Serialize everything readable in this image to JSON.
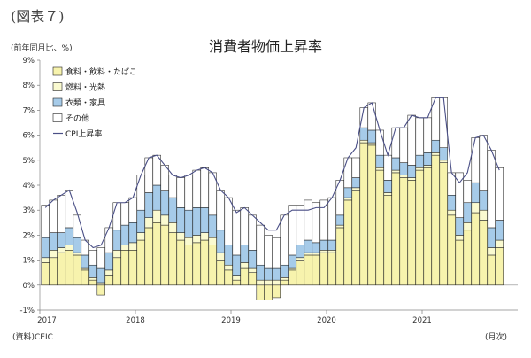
{
  "figure_label": "(図表７)",
  "unit_label": "(前年同月比、%)",
  "source_label": "(資料)CEIC",
  "month_label": "(月次)",
  "colors": {
    "food": "#f7f3ad",
    "fuel": "#fafad0",
    "clothing": "#a6cbe9",
    "other": "#ffffff",
    "cpi": "#4a4f86"
  },
  "chart_data": {
    "type": "bar",
    "title": "消費者物価上昇率",
    "ylim": [
      -1,
      9
    ],
    "yticks": [
      "-1%",
      "0%",
      "1%",
      "2%",
      "3%",
      "4%",
      "5%",
      "6%",
      "7%",
      "8%",
      "9%"
    ],
    "year_labels": [
      "2017",
      "2018",
      "2019",
      "2020",
      "2021"
    ],
    "stacked": true,
    "months": 58,
    "series": [
      {
        "name": "食料・飲料・たばこ",
        "key": "food",
        "values": [
          0.9,
          1.1,
          1.3,
          1.4,
          1.2,
          0.6,
          0.2,
          -0.4,
          0.4,
          1.1,
          1.4,
          1.4,
          1.8,
          2.3,
          2.5,
          2.4,
          2.1,
          1.8,
          1.6,
          1.7,
          1.8,
          1.6,
          1.0,
          0.6,
          0.2,
          0.7,
          0.5,
          -0.6,
          -0.6,
          -0.5,
          0.2,
          0.6,
          1.0,
          1.2,
          1.2,
          1.3,
          1.3,
          2.3,
          3.4,
          3.8,
          5.7,
          5.6,
          4.6,
          3.6,
          4.5,
          4.3,
          4.2,
          4.6,
          4.7,
          5.2,
          4.9,
          2.8,
          1.8,
          2.2,
          2.9,
          2.6,
          1.2,
          1.5
        ]
      },
      {
        "name": "燃料・光熱",
        "key": "fuel",
        "values": [
          0.2,
          0.3,
          0.2,
          0.2,
          0.1,
          0.1,
          0.1,
          0.1,
          0.2,
          0.3,
          0.2,
          0.3,
          0.3,
          0.4,
          0.5,
          0.4,
          0.4,
          0.3,
          0.3,
          0.3,
          0.3,
          0.3,
          0.3,
          0.2,
          0.2,
          0.2,
          0.2,
          0.2,
          0.2,
          0.2,
          0.1,
          0.1,
          0.1,
          0.1,
          0.1,
          0.1,
          0.1,
          0.1,
          0.1,
          0.1,
          0.1,
          0.1,
          0.1,
          0.1,
          0.1,
          0.1,
          0.1,
          0.1,
          0.1,
          0.1,
          0.1,
          0.2,
          0.2,
          0.3,
          0.4,
          0.4,
          0.3,
          0.3
        ]
      },
      {
        "name": "衣類・家具",
        "key": "clothing",
        "values": [
          0.8,
          0.7,
          0.6,
          0.7,
          0.6,
          0.5,
          0.5,
          0.6,
          0.7,
          0.8,
          0.8,
          0.8,
          0.9,
          1.0,
          1.0,
          1.0,
          1.0,
          1.0,
          1.1,
          1.1,
          1.0,
          0.9,
          0.9,
          0.8,
          0.8,
          0.7,
          0.7,
          0.6,
          0.5,
          0.5,
          0.5,
          0.5,
          0.5,
          0.5,
          0.4,
          0.4,
          0.4,
          0.4,
          0.4,
          0.4,
          0.5,
          0.5,
          0.5,
          0.5,
          0.5,
          0.5,
          0.5,
          0.5,
          0.5,
          0.5,
          0.5,
          0.6,
          0.7,
          0.8,
          0.8,
          0.8,
          0.8,
          0.8
        ]
      },
      {
        "name": "その他",
        "key": "other",
        "values": [
          1.3,
          1.3,
          1.5,
          1.5,
          0.9,
          0.6,
          0.6,
          0.8,
          1.0,
          1.1,
          0.9,
          1.0,
          1.4,
          1.4,
          1.2,
          1.0,
          0.9,
          1.2,
          1.4,
          1.5,
          1.6,
          1.7,
          1.6,
          1.9,
          1.8,
          1.5,
          1.4,
          1.6,
          1.3,
          1.2,
          2.0,
          2.0,
          1.6,
          1.6,
          1.6,
          1.6,
          1.7,
          1.4,
          1.2,
          0.8,
          0.8,
          1.1,
          1.0,
          1.0,
          1.2,
          1.4,
          2.0,
          1.5,
          1.4,
          1.7,
          2.0,
          0.9,
          1.8,
          0.9,
          1.8,
          2.2,
          3.1,
          2.1
        ]
      }
    ],
    "cpi": {
      "name": "CPI上昇率",
      "values": [
        3.1,
        3.4,
        3.6,
        3.8,
        2.9,
        1.8,
        1.5,
        1.6,
        2.3,
        3.3,
        3.3,
        3.5,
        4.4,
        5.1,
        5.2,
        4.8,
        4.4,
        4.3,
        4.4,
        4.6,
        4.7,
        4.5,
        3.8,
        3.5,
        2.9,
        3.1,
        2.8,
        2.5,
        2.2,
        2.2,
        2.8,
        3.0,
        3.0,
        3.0,
        3.1,
        3.1,
        3.5,
        4.2,
        5.1,
        5.5,
        7.1,
        7.3,
        6.2,
        5.2,
        6.3,
        6.3,
        6.8,
        6.7,
        6.7,
        7.5,
        7.5,
        4.5,
        4.1,
        4.5,
        5.9,
        6.0,
        5.4,
        4.6
      ]
    }
  }
}
